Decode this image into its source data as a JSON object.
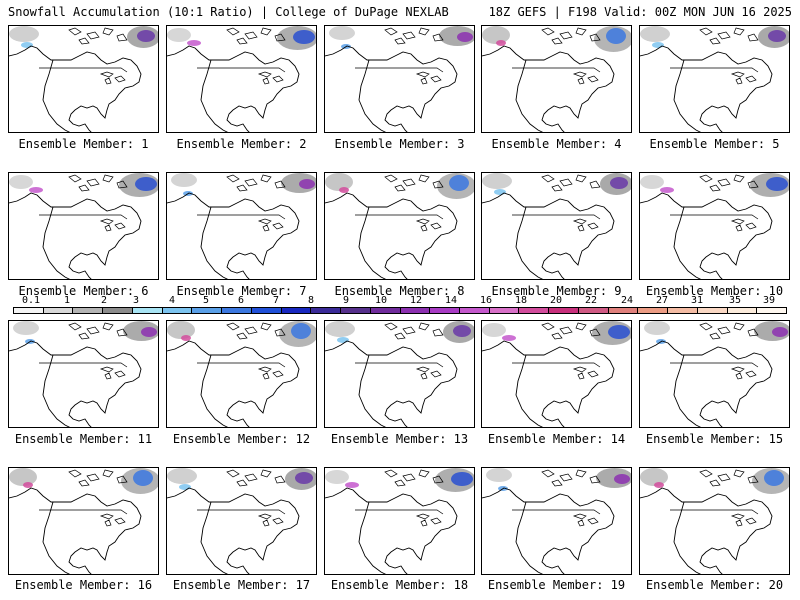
{
  "header": {
    "title_left": "Snowfall Accumulation (10:1 Ratio) | College of DuPage NEXLAB",
    "title_right": "18Z GEFS | F198 Valid: 00Z MON JUN 16 2025"
  },
  "members": [
    "Ensemble Member: 1",
    "Ensemble Member: 2",
    "Ensemble Member: 3",
    "Ensemble Member: 4",
    "Ensemble Member: 5",
    "Ensemble Member: 6",
    "Ensemble Member: 7",
    "Ensemble Member: 8",
    "Ensemble Member: 9",
    "Ensemble Member: 10",
    "Ensemble Member: 11",
    "Ensemble Member: 12",
    "Ensemble Member: 13",
    "Ensemble Member: 14",
    "Ensemble Member: 15",
    "Ensemble Member: 16",
    "Ensemble Member: 17",
    "Ensemble Member: 18",
    "Ensemble Member: 19",
    "Ensemble Member: 20"
  ],
  "colorbar": {
    "labels": [
      "0.1",
      "1",
      "2",
      "3",
      "4",
      "5",
      "6",
      "7",
      "8",
      "9",
      "10",
      "12",
      "14",
      "16",
      "18",
      "20",
      "22",
      "24",
      "27",
      "31",
      "35",
      "39"
    ],
    "colors": [
      "#f4f4f4",
      "#d8d8d8",
      "#b4b4b4",
      "#8c8c8c",
      "#a8e4f4",
      "#7cc4f0",
      "#5aa0e8",
      "#3c78e0",
      "#2050d8",
      "#1828c0",
      "#3a2a98",
      "#56308c",
      "#702c9c",
      "#8c30b0",
      "#a83cc4",
      "#c458cc",
      "#d870c8",
      "#d24c9c",
      "#c8307c",
      "#d05a84",
      "#e0807c",
      "#ec9c84",
      "#f4bca4",
      "#fad8c4",
      "#fcecdc",
      "#fff8f0"
    ]
  }
}
